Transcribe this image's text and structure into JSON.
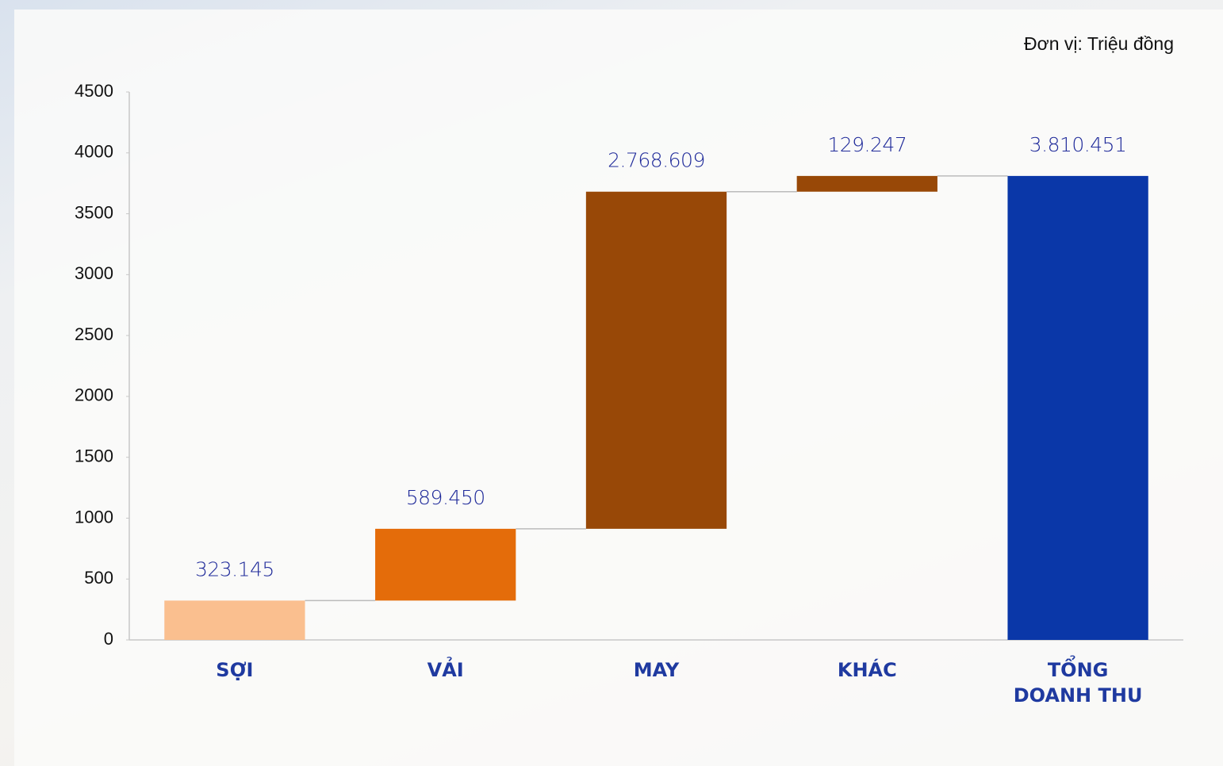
{
  "chart_data": {
    "type": "waterfall",
    "unit_note": "Đơn vị: Triệu đồng",
    "categories": [
      "SỢI",
      "VẢI",
      "MAY",
      "KHÁC",
      "TỔNG\nDOANH THU"
    ],
    "values": [
      323.145,
      589.45,
      2768.609,
      129.247,
      3810.451
    ],
    "value_labels": [
      "323.145",
      "589.450",
      "2.768.609",
      "129.247",
      "3.810.451"
    ],
    "totals": [
      false,
      false,
      false,
      false,
      true
    ],
    "colors": [
      "#fabf8f",
      "#e46c0a",
      "#984807",
      "#984807",
      "#0a37a8"
    ],
    "ylim": [
      0,
      4500
    ],
    "yticks": [
      0,
      500,
      1000,
      1500,
      2000,
      2500,
      3000,
      3500,
      4000,
      4500
    ],
    "grid": false
  }
}
